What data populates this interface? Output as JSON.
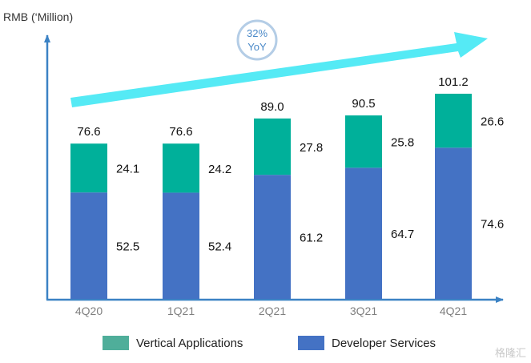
{
  "chart_data": {
    "type": "bar",
    "stacked": true,
    "ylabel": "RMB (‘Million)",
    "categories": [
      "4Q20",
      "1Q21",
      "2Q21",
      "3Q21",
      "4Q21"
    ],
    "series": [
      {
        "name": "Developer Services",
        "color": "#4472c4",
        "values": [
          52.5,
          52.4,
          61.2,
          64.7,
          74.6
        ]
      },
      {
        "name": "Vertical Applications",
        "color": "#00b09a",
        "values": [
          24.1,
          24.2,
          27.8,
          25.8,
          26.6
        ]
      }
    ],
    "totals": [
      "76.6",
      "76.6",
      "89.0",
      "90.5",
      "101.2"
    ],
    "segment_labels": {
      "Developer Services": [
        "52.5",
        "52.4",
        "61.2",
        "64.7",
        "74.6"
      ],
      "Vertical Applications": [
        "24.1",
        "24.2",
        "27.8",
        "25.8",
        "26.6"
      ]
    },
    "legend": [
      {
        "name": "Vertical Applications",
        "color": "#4fae9a"
      },
      {
        "name": "Developer Services",
        "color": "#4472c4"
      }
    ],
    "annotation": {
      "line1": "32%",
      "line2": "YoY",
      "arrow_color": "#55eaf5",
      "circle_color": "#b4cde6",
      "text_color": "#4a89c8"
    },
    "axis_color": "#3b82c4",
    "tick_label_color": "#7f7f7f",
    "ylim": [
      0,
      115
    ],
    "grid": false
  },
  "watermark": "格隆汇"
}
